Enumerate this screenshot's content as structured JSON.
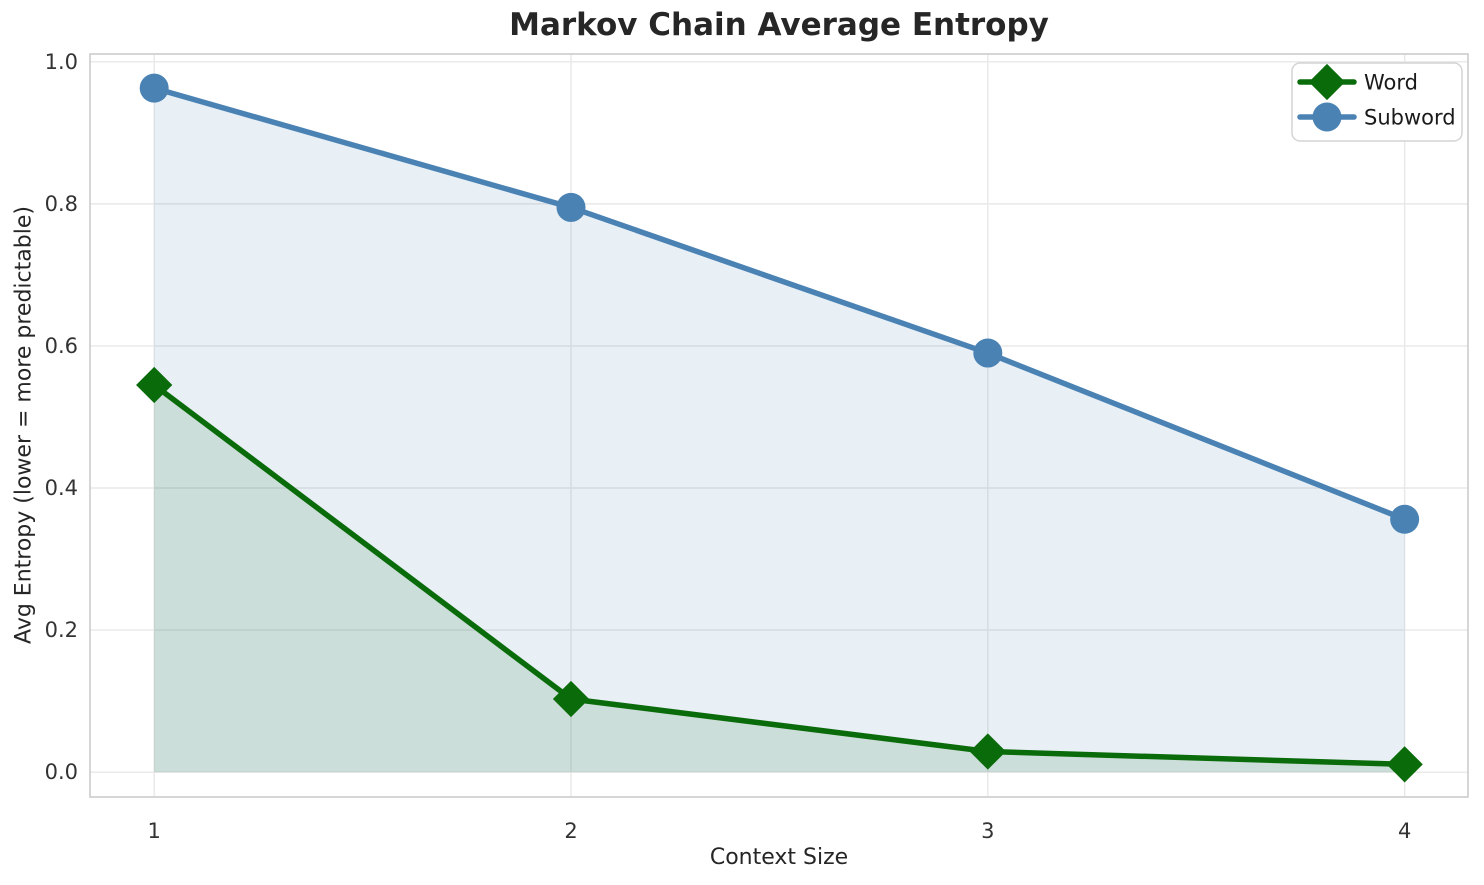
{
  "chart_data": {
    "type": "line",
    "title": "Markov Chain Average Entropy",
    "xlabel": "Context Size",
    "ylabel": "Avg Entropy (lower = more predictable)",
    "x": [
      1,
      2,
      3,
      4
    ],
    "series": [
      {
        "name": "Word",
        "values": [
          0.545,
          0.103,
          0.029,
          0.011
        ],
        "color": "#0a6b0a",
        "marker": "diamond",
        "fill_to_zero": true
      },
      {
        "name": "Subword",
        "values": [
          0.963,
          0.795,
          0.59,
          0.356
        ],
        "color": "#4a82b4",
        "marker": "circle",
        "fill_to_zero": true
      }
    ],
    "fill_opacity": 0.13,
    "line_width": 5.5,
    "marker_size": 14.5,
    "xticks": {
      "values": [
        1,
        2,
        3,
        4
      ],
      "labels": [
        "1",
        "2",
        "3",
        "4"
      ]
    },
    "yticks": {
      "values": [
        0.0,
        0.2,
        0.4,
        0.6,
        0.8,
        1.0
      ],
      "labels": [
        "0.0",
        "0.2",
        "0.4",
        "0.6",
        "0.8",
        "1.0"
      ]
    },
    "xlim": [
      0.846,
      4.152
    ],
    "ylim": [
      -0.035,
      1.011
    ],
    "grid": true,
    "legend": {
      "position": "upper right",
      "entries": [
        "Word",
        "Subword"
      ]
    }
  },
  "style": {
    "background": "#ffffff",
    "grid_color": "#e8e8e8",
    "spine_color": "#cccccc",
    "tick_label_color": "#333333",
    "text_color": "#262626",
    "legend_border_color": "#d4d4d4",
    "legend_background": "#ffffff",
    "legend_text_color": "#1a1a1a"
  }
}
